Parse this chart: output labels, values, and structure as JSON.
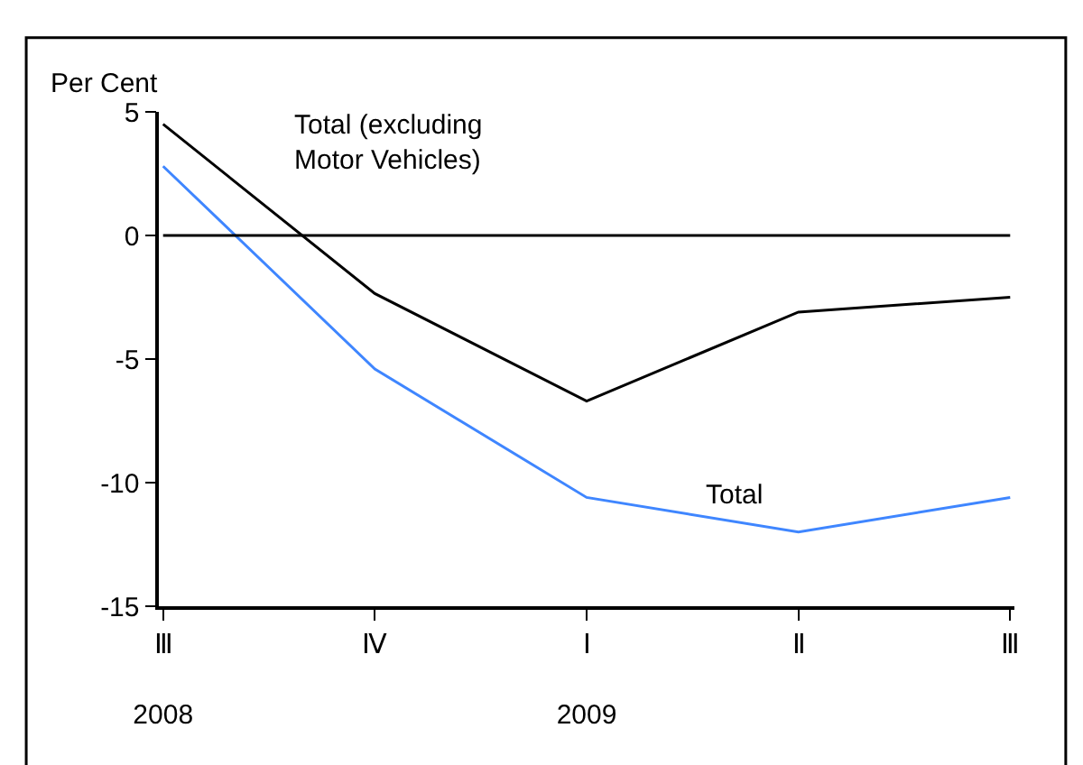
{
  "chart_data": {
    "type": "line",
    "ylabel": "Per Cent",
    "categories": [
      "Ⅲ\n2008",
      "Ⅳ",
      "Ⅰ\n2009",
      "Ⅱ",
      "Ⅲ"
    ],
    "series": [
      {
        "name": "Total (excluding\nMotor Vehicles)",
        "color": "#000000",
        "values": [
          4.5,
          -2.35,
          -6.7,
          -3.1,
          -2.5
        ]
      },
      {
        "name": "Total",
        "color": "#3f86ff",
        "values": [
          2.8,
          -5.4,
          -10.6,
          -12.0,
          -10.6
        ]
      }
    ],
    "ylim": [
      -15,
      5
    ],
    "yticks": [
      -15,
      -10,
      -5,
      0,
      5
    ],
    "legend": false,
    "marker": "none",
    "line_style": "solid",
    "ref_lines": [
      {
        "axis": "y",
        "value": 0,
        "color": "#000000"
      }
    ]
  }
}
